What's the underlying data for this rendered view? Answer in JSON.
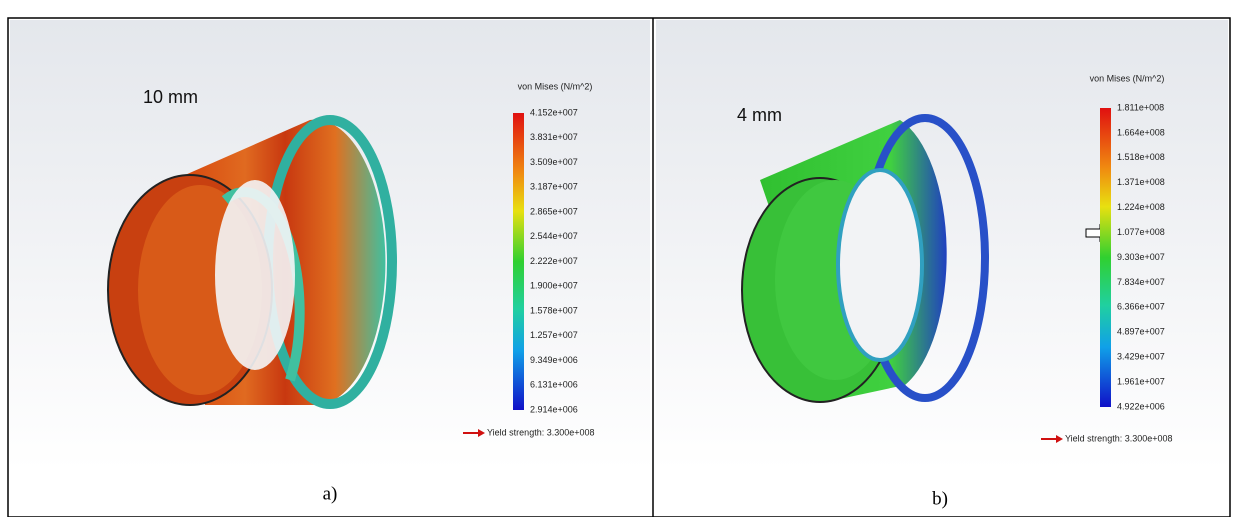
{
  "panels": [
    {
      "thickness": "10 mm",
      "legend_title": "von Mises (N/m^2)",
      "legend_ticks": [
        "4.152e+007",
        "3.831e+007",
        "3.509e+007",
        "3.187e+007",
        "2.865e+007",
        "2.544e+007",
        "2.222e+007",
        "1.900e+007",
        "1.578e+007",
        "1.257e+007",
        "9.349e+006",
        "6.131e+006",
        "2.914e+006"
      ],
      "yield": "Yield strength: 3.300e+008",
      "caption": "a)"
    },
    {
      "thickness": "4 mm",
      "legend_title": "von Mises (N/m^2)",
      "legend_ticks": [
        "1.811e+008",
        "1.664e+008",
        "1.518e+008",
        "1.371e+008",
        "1.224e+008",
        "1.077e+008",
        "9.303e+007",
        "7.834e+007",
        "6.366e+007",
        "4.897e+007",
        "3.429e+007",
        "1.961e+007",
        "4.922e+006"
      ],
      "yield": "Yield strength: 3.300e+008",
      "caption": "b)"
    }
  ]
}
